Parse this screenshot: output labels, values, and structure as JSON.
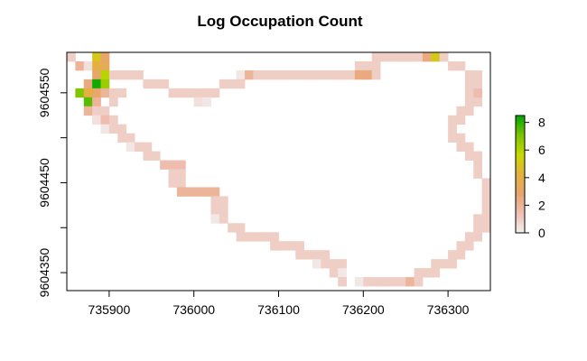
{
  "chart_data": {
    "type": "heatmap",
    "title": "Log Occupation Count",
    "xlabel": "",
    "ylabel": "",
    "xlim": [
      735850,
      736350
    ],
    "ylim": [
      9604330,
      9604595
    ],
    "cell_size": 10,
    "x_ticks": [
      735900,
      736000,
      736100,
      736200,
      736300
    ],
    "x_tick_labels": [
      "735900",
      "736000",
      "736100",
      "736200",
      "736300"
    ],
    "y_ticks": [
      9604350,
      9604400,
      9604450,
      9604500,
      9604550,
      9604600
    ],
    "y_tick_labels": [
      "9604350",
      "",
      "9604450",
      "",
      "9604550",
      ""
    ],
    "grid": false,
    "legend": {
      "placement": "right",
      "range": [
        0,
        8.5
      ],
      "ticks": [
        0,
        2,
        4,
        6,
        8
      ],
      "tick_labels": [
        "0",
        "2",
        "4",
        "6",
        "8"
      ],
      "colors": [
        "#f2f2f2",
        "#eebfb4",
        "#e8a470",
        "#e3b23c",
        "#c9d900",
        "#7dc400",
        "#00a600"
      ]
    },
    "cells": [
      [
        735855,
        9604590,
        1.0
      ],
      [
        735885,
        9604590,
        5.0
      ],
      [
        735895,
        9604590,
        3.0
      ],
      [
        735865,
        9604580,
        2.0
      ],
      [
        735875,
        9604580,
        0.5
      ],
      [
        735885,
        9604580,
        4.0
      ],
      [
        735895,
        9604580,
        3.5
      ],
      [
        735885,
        9604570,
        3.0
      ],
      [
        735895,
        9604570,
        6.0
      ],
      [
        735905,
        9604570,
        1.0
      ],
      [
        735915,
        9604570,
        1.0
      ],
      [
        735925,
        9604570,
        1.0
      ],
      [
        735935,
        9604570,
        1.0
      ],
      [
        735875,
        9604560,
        2.5
      ],
      [
        735885,
        9604560,
        8.3
      ],
      [
        735895,
        9604560,
        6.5
      ],
      [
        735945,
        9604560,
        1.0
      ],
      [
        735955,
        9604560,
        1.0
      ],
      [
        735965,
        9604560,
        1.0
      ],
      [
        735865,
        9604550,
        7.0
      ],
      [
        735875,
        9604550,
        4.0
      ],
      [
        735885,
        9604550,
        3.0
      ],
      [
        735895,
        9604550,
        2.0
      ],
      [
        735905,
        9604550,
        1.0
      ],
      [
        735915,
        9604550,
        1.0
      ],
      [
        735975,
        9604550,
        1.0
      ],
      [
        735985,
        9604550,
        1.0
      ],
      [
        735995,
        9604550,
        1.0
      ],
      [
        736005,
        9604550,
        1.0
      ],
      [
        736015,
        9604550,
        1.0
      ],
      [
        736025,
        9604550,
        1.0
      ],
      [
        735875,
        9604540,
        7.5
      ],
      [
        735885,
        9604540,
        2.0
      ],
      [
        735905,
        9604540,
        1.0
      ],
      [
        736005,
        9604540,
        0.5
      ],
      [
        736015,
        9604540,
        0.3
      ],
      [
        735875,
        9604530,
        2.0
      ],
      [
        735885,
        9604530,
        1.0
      ],
      [
        735895,
        9604530,
        1.0
      ],
      [
        735885,
        9604520,
        0.5
      ],
      [
        735895,
        9604520,
        1.5
      ],
      [
        735905,
        9604520,
        1.0
      ],
      [
        735895,
        9604510,
        0.3
      ],
      [
        735905,
        9604510,
        1.0
      ],
      [
        735915,
        9604510,
        1.0
      ],
      [
        735915,
        9604500,
        1.0
      ],
      [
        735925,
        9604500,
        1.0
      ],
      [
        735925,
        9604490,
        0.3
      ],
      [
        735935,
        9604490,
        1.0
      ],
      [
        735945,
        9604490,
        1.0
      ],
      [
        735945,
        9604480,
        1.0
      ],
      [
        735955,
        9604480,
        1.0
      ],
      [
        735965,
        9604470,
        1.5
      ],
      [
        735975,
        9604470,
        1.5
      ],
      [
        735985,
        9604470,
        1.5
      ],
      [
        735975,
        9604460,
        1.0
      ],
      [
        735985,
        9604460,
        1.0
      ],
      [
        735975,
        9604450,
        1.0
      ],
      [
        735985,
        9604450,
        1.0
      ],
      [
        735985,
        9604440,
        2.0
      ],
      [
        735995,
        9604440,
        2.0
      ],
      [
        736005,
        9604440,
        2.0
      ],
      [
        736015,
        9604440,
        2.0
      ],
      [
        736025,
        9604440,
        2.0
      ],
      [
        736025,
        9604430,
        1.0
      ],
      [
        736035,
        9604430,
        1.0
      ],
      [
        736025,
        9604420,
        1.0
      ],
      [
        736035,
        9604420,
        1.0
      ],
      [
        736025,
        9604410,
        0.3
      ],
      [
        736035,
        9604410,
        1.0
      ],
      [
        736045,
        9604400,
        1.0
      ],
      [
        736055,
        9604400,
        1.0
      ],
      [
        736055,
        9604390,
        1.0
      ],
      [
        736065,
        9604390,
        1.0
      ],
      [
        736075,
        9604390,
        1.0
      ],
      [
        736085,
        9604390,
        1.0
      ],
      [
        736095,
        9604390,
        1.0
      ],
      [
        736095,
        9604380,
        1.0
      ],
      [
        736105,
        9604380,
        1.0
      ],
      [
        736115,
        9604380,
        1.0
      ],
      [
        736125,
        9604380,
        1.0
      ],
      [
        736125,
        9604370,
        1.0
      ],
      [
        736135,
        9604370,
        1.0
      ],
      [
        736145,
        9604370,
        1.0
      ],
      [
        736155,
        9604370,
        1.0
      ],
      [
        736145,
        9604360,
        0.3
      ],
      [
        736155,
        9604360,
        1.0
      ],
      [
        736165,
        9604360,
        1.0
      ],
      [
        736175,
        9604360,
        1.0
      ],
      [
        736165,
        9604350,
        1.0
      ],
      [
        736175,
        9604350,
        0.3
      ],
      [
        736175,
        9604340,
        1.0
      ],
      [
        736195,
        9604340,
        0.3
      ],
      [
        736205,
        9604340,
        1.0
      ],
      [
        736215,
        9604340,
        1.0
      ],
      [
        736225,
        9604340,
        1.0
      ],
      [
        736235,
        9604340,
        1.0
      ],
      [
        736245,
        9604340,
        1.0
      ],
      [
        736255,
        9604340,
        2.0
      ],
      [
        736265,
        9604340,
        1.0
      ],
      [
        736265,
        9604350,
        1.0
      ],
      [
        736275,
        9604350,
        1.0
      ],
      [
        736285,
        9604350,
        1.0
      ],
      [
        736285,
        9604360,
        1.0
      ],
      [
        736295,
        9604360,
        1.0
      ],
      [
        736305,
        9604360,
        1.0
      ],
      [
        736305,
        9604370,
        1.0
      ],
      [
        736315,
        9604370,
        1.0
      ],
      [
        736315,
        9604380,
        1.0
      ],
      [
        736325,
        9604380,
        1.0
      ],
      [
        736325,
        9604390,
        1.0
      ],
      [
        736335,
        9604390,
        1.0
      ],
      [
        736335,
        9604400,
        1.0
      ],
      [
        736345,
        9604400,
        1.0
      ],
      [
        736335,
        9604410,
        1.0
      ],
      [
        736345,
        9604410,
        1.0
      ],
      [
        736345,
        9604420,
        1.0
      ],
      [
        736345,
        9604430,
        1.0
      ],
      [
        736345,
        9604440,
        1.0
      ],
      [
        736345,
        9604450,
        1.0
      ],
      [
        736335,
        9604460,
        1.0
      ],
      [
        736335,
        9604470,
        1.0
      ],
      [
        736325,
        9604480,
        1.0
      ],
      [
        736335,
        9604480,
        1.0
      ],
      [
        736315,
        9604490,
        1.0
      ],
      [
        736325,
        9604490,
        1.0
      ],
      [
        736305,
        9604500,
        1.0
      ],
      [
        736315,
        9604500,
        1.0
      ],
      [
        736305,
        9604510,
        1.0
      ],
      [
        736305,
        9604520,
        1.0
      ],
      [
        736315,
        9604520,
        1.0
      ],
      [
        736315,
        9604530,
        1.0
      ],
      [
        736325,
        9604530,
        1.0
      ],
      [
        736325,
        9604540,
        1.0
      ],
      [
        736335,
        9604540,
        1.0
      ],
      [
        736325,
        9604550,
        1.0
      ],
      [
        736335,
        9604550,
        1.5
      ],
      [
        736325,
        9604560,
        1.0
      ],
      [
        736335,
        9604560,
        1.0
      ],
      [
        736325,
        9604570,
        1.0
      ],
      [
        736335,
        9604570,
        1.0
      ],
      [
        736305,
        9604580,
        1.0
      ],
      [
        736315,
        9604580,
        1.0
      ],
      [
        736215,
        9604590,
        1.0
      ],
      [
        736225,
        9604590,
        1.0
      ],
      [
        736235,
        9604590,
        1.0
      ],
      [
        736245,
        9604590,
        1.0
      ],
      [
        736255,
        9604590,
        1.0
      ],
      [
        736265,
        9604590,
        1.0
      ],
      [
        736275,
        9604590,
        2.5
      ],
      [
        736285,
        9604590,
        5.0
      ],
      [
        736295,
        9604590,
        1.0
      ],
      [
        736195,
        9604580,
        1.0
      ],
      [
        736205,
        9604580,
        1.0
      ],
      [
        736215,
        9604580,
        1.0
      ],
      [
        736055,
        9604570,
        0.3
      ],
      [
        736065,
        9604570,
        2.0
      ],
      [
        736075,
        9604570,
        1.0
      ],
      [
        736085,
        9604570,
        1.0
      ],
      [
        736095,
        9604570,
        1.0
      ],
      [
        736105,
        9604570,
        1.0
      ],
      [
        736115,
        9604570,
        1.0
      ],
      [
        736125,
        9604570,
        1.0
      ],
      [
        736135,
        9604570,
        1.0
      ],
      [
        736145,
        9604570,
        1.0
      ],
      [
        736155,
        9604570,
        1.0
      ],
      [
        736165,
        9604570,
        1.0
      ],
      [
        736175,
        9604570,
        1.0
      ],
      [
        736185,
        9604570,
        1.0
      ],
      [
        736195,
        9604570,
        2.5
      ],
      [
        736205,
        9604570,
        2.5
      ],
      [
        736215,
        9604570,
        1.0
      ],
      [
        736035,
        9604560,
        1.0
      ],
      [
        736045,
        9604560,
        1.0
      ],
      [
        736055,
        9604560,
        1.0
      ]
    ]
  }
}
